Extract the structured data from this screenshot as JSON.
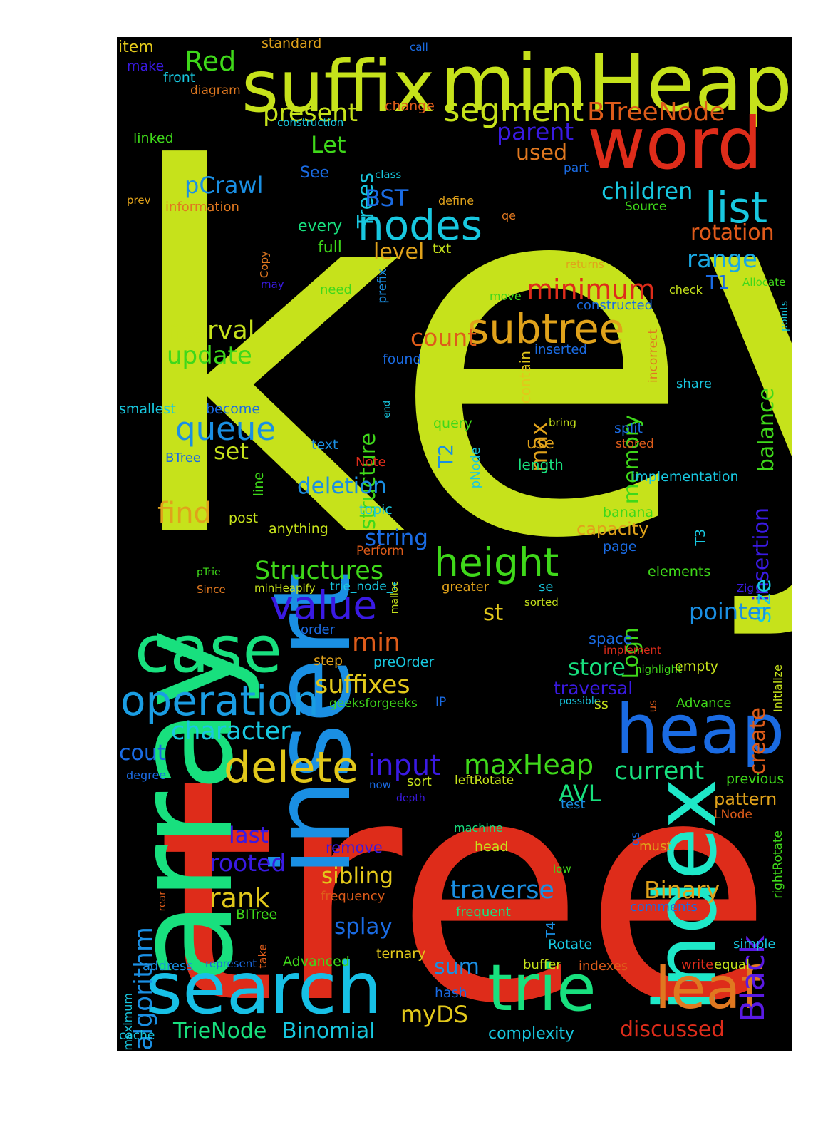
{
  "word_cloud": {
    "background": "#000000",
    "words": [
      {
        "text": "key",
        "color": "#c6e21b"
      },
      {
        "text": "tree",
        "color": "#de2c1a"
      },
      {
        "text": "array",
        "color": "#18e07e"
      },
      {
        "text": "insert",
        "color": "#1a8fe3"
      },
      {
        "text": "index",
        "color": "#1ee8c8"
      },
      {
        "text": "minHeap",
        "color": "#c6e21b"
      },
      {
        "text": "suffix",
        "color": "#c6e21b"
      },
      {
        "text": "word",
        "color": "#de2c1a"
      },
      {
        "text": "search",
        "color": "#17c0e6"
      },
      {
        "text": "heap",
        "color": "#1a6be3"
      },
      {
        "text": "case",
        "color": "#18e07e"
      },
      {
        "text": "trie",
        "color": "#18e07e"
      },
      {
        "text": "leaf",
        "color": "#e07820"
      },
      {
        "text": "operation",
        "color": "#1a9de3"
      },
      {
        "text": "subtree",
        "color": "#e0a21b"
      },
      {
        "text": "nodes",
        "color": "#18c8e0"
      },
      {
        "text": "height",
        "color": "#3fd81a"
      },
      {
        "text": "list",
        "color": "#18c8e0"
      },
      {
        "text": "delete",
        "color": "#e2c81b"
      },
      {
        "text": "value",
        "color": "#3a1ae3"
      },
      {
        "text": "segment",
        "color": "#c6e21b"
      },
      {
        "text": "queue",
        "color": "#1a8fe3"
      },
      {
        "text": "Black",
        "color": "#5a1ae3"
      },
      {
        "text": "Red",
        "color": "#3fd81a"
      },
      {
        "text": "BTreeNode",
        "color": "#de5c1a"
      },
      {
        "text": "present",
        "color": "#c6e21b"
      },
      {
        "text": "Trees",
        "color": "#18c8e0"
      },
      {
        "text": "Let",
        "color": "#3fd81a"
      },
      {
        "text": "parent",
        "color": "#3a1ae3"
      },
      {
        "text": "used",
        "color": "#e07820"
      },
      {
        "text": "pCrawl",
        "color": "#1a8fe3"
      },
      {
        "text": "BST",
        "color": "#1a6be3"
      },
      {
        "text": "children",
        "color": "#18c8e0"
      },
      {
        "text": "rotation",
        "color": "#e05a1a"
      },
      {
        "text": "range",
        "color": "#1aa8e3"
      },
      {
        "text": "minimum",
        "color": "#de2c1a"
      },
      {
        "text": "interval",
        "color": "#c6e21b"
      },
      {
        "text": "update",
        "color": "#3fd81a"
      },
      {
        "text": "count",
        "color": "#de5c1a"
      },
      {
        "text": "level",
        "color": "#e0a21b"
      },
      {
        "text": "structure",
        "color": "#3fd81a"
      },
      {
        "text": "max",
        "color": "#e0a21b"
      },
      {
        "text": "memory",
        "color": "#3fd81a"
      },
      {
        "text": "balance",
        "color": "#3fd81a"
      },
      {
        "text": "insertion",
        "color": "#3a1ae3"
      },
      {
        "text": "size",
        "color": "#18c8e0"
      },
      {
        "text": "find",
        "color": "#e0a21b"
      },
      {
        "text": "set",
        "color": "#c6e21b"
      },
      {
        "text": "deletion",
        "color": "#1a8fe3"
      },
      {
        "text": "string",
        "color": "#1a6be3"
      },
      {
        "text": "Structures",
        "color": "#3fd81a"
      },
      {
        "text": "st",
        "color": "#e2c81b"
      },
      {
        "text": "Logn",
        "color": "#3fd81a"
      },
      {
        "text": "pointer",
        "color": "#1a8fe3"
      },
      {
        "text": "min",
        "color": "#de5c1a"
      },
      {
        "text": "suffixes",
        "color": "#e2c81b"
      },
      {
        "text": "character",
        "color": "#18c8e0"
      },
      {
        "text": "store",
        "color": "#18e07e"
      },
      {
        "text": "create",
        "color": "#de5c1a"
      },
      {
        "text": "input",
        "color": "#3a1ae3"
      },
      {
        "text": "maxHeap",
        "color": "#3fd81a"
      },
      {
        "text": "current",
        "color": "#18e07e"
      },
      {
        "text": "AVL",
        "color": "#18e07e"
      },
      {
        "text": "cout",
        "color": "#1a6be3"
      },
      {
        "text": "last",
        "color": "#3a1ae3"
      },
      {
        "text": "rooted",
        "color": "#3a1ae3"
      },
      {
        "text": "rank",
        "color": "#e2c81b"
      },
      {
        "text": "algorithm",
        "color": "#1a8fe3"
      },
      {
        "text": "sibling",
        "color": "#e2c81b"
      },
      {
        "text": "traverse",
        "color": "#1a8fe3"
      },
      {
        "text": "Binary",
        "color": "#e0a21b"
      },
      {
        "text": "splay",
        "color": "#1a6be3"
      },
      {
        "text": "sum",
        "color": "#1a8fe3"
      },
      {
        "text": "myDS",
        "color": "#e2c81b"
      },
      {
        "text": "TrieNode",
        "color": "#18e07e"
      },
      {
        "text": "Binomial",
        "color": "#18c8e0"
      },
      {
        "text": "complexity",
        "color": "#18c8e0"
      },
      {
        "text": "discussed",
        "color": "#de2c1a"
      },
      {
        "text": "pattern",
        "color": "#e0a21b"
      },
      {
        "text": "item",
        "color": "#e2c81b"
      },
      {
        "text": "standard",
        "color": "#e0a21b"
      },
      {
        "text": "call",
        "color": "#1a6be3"
      },
      {
        "text": "make",
        "color": "#3a1ae3"
      },
      {
        "text": "front",
        "color": "#18c8e0"
      },
      {
        "text": "diagram",
        "color": "#e07820"
      },
      {
        "text": "change",
        "color": "#de5c1a"
      },
      {
        "text": "construction",
        "color": "#18c8e0"
      },
      {
        "text": "linked",
        "color": "#3fd81a"
      },
      {
        "text": "See",
        "color": "#1a6be3"
      },
      {
        "text": "class",
        "color": "#18c8e0"
      },
      {
        "text": "part",
        "color": "#1a6be3"
      },
      {
        "text": "prev",
        "color": "#e0a21b"
      },
      {
        "text": "information",
        "color": "#e07820"
      },
      {
        "text": "define",
        "color": "#e0a21b"
      },
      {
        "text": "Source",
        "color": "#3fd81a"
      },
      {
        "text": "qe",
        "color": "#e07820"
      },
      {
        "text": "every",
        "color": "#18e07e"
      },
      {
        "text": "full",
        "color": "#3fd81a"
      },
      {
        "text": "Copy",
        "color": "#e07820"
      },
      {
        "text": "txt",
        "color": "#c6e21b"
      },
      {
        "text": "may",
        "color": "#3a1ae3"
      },
      {
        "text": "need",
        "color": "#3fd81a"
      },
      {
        "text": "prefix",
        "color": "#1a8fe3"
      },
      {
        "text": "returns",
        "color": "#e0a21b"
      },
      {
        "text": "move",
        "color": "#3fd81a"
      },
      {
        "text": "check",
        "color": "#c6e21b"
      },
      {
        "text": "T1",
        "color": "#1a6be3"
      },
      {
        "text": "Allocate",
        "color": "#3fd81a"
      },
      {
        "text": "constructed",
        "color": "#1a6be3"
      },
      {
        "text": "points",
        "color": "#18c8e0"
      },
      {
        "text": "found",
        "color": "#1a6be3"
      },
      {
        "text": "inserted",
        "color": "#1a6be3"
      },
      {
        "text": "incorrect",
        "color": "#e07820"
      },
      {
        "text": "contain",
        "color": "#e2c81b"
      },
      {
        "text": "share",
        "color": "#18c8e0"
      },
      {
        "text": "smallest",
        "color": "#18c8e0"
      },
      {
        "text": "become",
        "color": "#1a6be3"
      },
      {
        "text": "end",
        "color": "#18c8e0"
      },
      {
        "text": "query",
        "color": "#3fd81a"
      },
      {
        "text": "bring",
        "color": "#c6e21b"
      },
      {
        "text": "split",
        "color": "#1a6be3"
      },
      {
        "text": "stored",
        "color": "#de5c1a"
      },
      {
        "text": "BTree",
        "color": "#1a6be3"
      },
      {
        "text": "text",
        "color": "#1a8fe3"
      },
      {
        "text": "T2",
        "color": "#1a8fe3"
      },
      {
        "text": "use",
        "color": "#e0a21b"
      },
      {
        "text": "Note",
        "color": "#de2c1a"
      },
      {
        "text": "pNode",
        "color": "#18c8e0"
      },
      {
        "text": "length",
        "color": "#18e07e"
      },
      {
        "text": "implementation",
        "color": "#18c8e0"
      },
      {
        "text": "line",
        "color": "#3fd81a"
      },
      {
        "text": "post",
        "color": "#c6e21b"
      },
      {
        "text": "topic",
        "color": "#18c8e0"
      },
      {
        "text": "banana",
        "color": "#3fd81a"
      },
      {
        "text": "anything",
        "color": "#c6e21b"
      },
      {
        "text": "capacity",
        "color": "#e0a21b"
      },
      {
        "text": "T3",
        "color": "#18c8e0"
      },
      {
        "text": "page",
        "color": "#1a6be3"
      },
      {
        "text": "Perform",
        "color": "#de5c1a"
      },
      {
        "text": "pTrie",
        "color": "#3fd81a"
      },
      {
        "text": "Since",
        "color": "#e07820"
      },
      {
        "text": "minHeapify",
        "color": "#c6e21b"
      },
      {
        "text": "trie_node_t",
        "color": "#18c8e0"
      },
      {
        "text": "greater",
        "color": "#e0a21b"
      },
      {
        "text": "se",
        "color": "#18c8e0"
      },
      {
        "text": "elements",
        "color": "#3fd81a"
      },
      {
        "text": "Zig",
        "color": "#3a1ae3"
      },
      {
        "text": "malloc",
        "color": "#c6e21b"
      },
      {
        "text": "sorted",
        "color": "#c6e21b"
      },
      {
        "text": "order",
        "color": "#1a6be3"
      },
      {
        "text": "space",
        "color": "#1a6be3"
      },
      {
        "text": "implement",
        "color": "#de2c1a"
      },
      {
        "text": "step",
        "color": "#e0a21b"
      },
      {
        "text": "preOrder",
        "color": "#18c8e0"
      },
      {
        "text": "highlight",
        "color": "#3fd81a"
      },
      {
        "text": "empty",
        "color": "#c6e21b"
      },
      {
        "text": "Initialize",
        "color": "#c6e21b"
      },
      {
        "text": "traversal",
        "color": "#3a1ae3"
      },
      {
        "text": "geeksforgeeks",
        "color": "#3fd81a"
      },
      {
        "text": "IP",
        "color": "#1a6be3"
      },
      {
        "text": "possible",
        "color": "#18c8e0"
      },
      {
        "text": "ss",
        "color": "#c6e21b"
      },
      {
        "text": "us",
        "color": "#de5c1a"
      },
      {
        "text": "Advance",
        "color": "#3fd81a"
      },
      {
        "text": "degree",
        "color": "#1a6be3"
      },
      {
        "text": "now",
        "color": "#1a6be3"
      },
      {
        "text": "sort",
        "color": "#c6e21b"
      },
      {
        "text": "leftRotate",
        "color": "#c6e21b"
      },
      {
        "text": "previous",
        "color": "#3fd81a"
      },
      {
        "text": "depth",
        "color": "#3a1ae3"
      },
      {
        "text": "test",
        "color": "#1a8fe3"
      },
      {
        "text": "LNode",
        "color": "#de5c1a"
      },
      {
        "text": "remove",
        "color": "#3a1ae3"
      },
      {
        "text": "machine",
        "color": "#18e07e"
      },
      {
        "text": "qs",
        "color": "#1a6be3"
      },
      {
        "text": "rightRotate",
        "color": "#3fd81a"
      },
      {
        "text": "head",
        "color": "#c6e21b"
      },
      {
        "text": "must",
        "color": "#e0a21b"
      },
      {
        "text": "rear",
        "color": "#de5c1a"
      },
      {
        "text": "low",
        "color": "#3fd81a"
      },
      {
        "text": "frequency",
        "color": "#de5c1a"
      },
      {
        "text": "BITree",
        "color": "#3fd81a"
      },
      {
        "text": "frequent",
        "color": "#18e07e"
      },
      {
        "text": "T4",
        "color": "#1a8fe3"
      },
      {
        "text": "comments",
        "color": "#1a6be3"
      },
      {
        "text": "take",
        "color": "#de5c1a"
      },
      {
        "text": "Rotate",
        "color": "#18c8e0"
      },
      {
        "text": "simple",
        "color": "#18c8e0"
      },
      {
        "text": "maximum",
        "color": "#18c8e0"
      },
      {
        "text": "address",
        "color": "#1a8fe3"
      },
      {
        "text": "represent",
        "color": "#1a6be3"
      },
      {
        "text": "Advanced",
        "color": "#3fd81a"
      },
      {
        "text": "ternary",
        "color": "#e2c81b"
      },
      {
        "text": "buffer",
        "color": "#c6e21b"
      },
      {
        "text": "indexes",
        "color": "#de5c1a"
      },
      {
        "text": "write",
        "color": "#de2c1a"
      },
      {
        "text": "equal",
        "color": "#c6e21b"
      },
      {
        "text": "hash",
        "color": "#1a6be3"
      },
      {
        "text": "cache",
        "color": "#18c8e0"
      }
    ]
  }
}
